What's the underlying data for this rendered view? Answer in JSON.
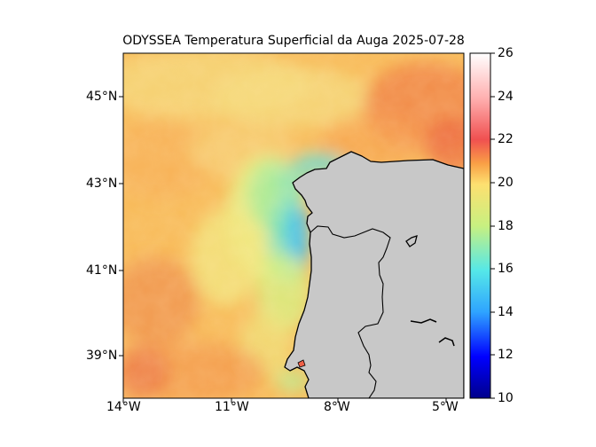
{
  "title": "ODYSSEA Temperatura Superficial da Auga 2025-07-28",
  "map": {
    "lon_range": [
      -14,
      -4.3
    ],
    "lat_range": [
      38,
      46
    ],
    "lon_ticks": [
      {
        "value": -14,
        "label": "14°W"
      },
      {
        "value": -11,
        "label": "11°W"
      },
      {
        "value": -8,
        "label": "8°W"
      },
      {
        "value": -5,
        "label": "5°W"
      }
    ],
    "lat_ticks": [
      {
        "value": 45,
        "label": "45°N"
      },
      {
        "value": 43,
        "label": "43°N"
      },
      {
        "value": 41,
        "label": "41°N"
      },
      {
        "value": 39,
        "label": "39°N"
      }
    ],
    "land_color": "#c8c8c8",
    "coastline_color": "#000000",
    "layer": "sea surface temperature"
  },
  "colorbar": {
    "min": 10,
    "max": 26,
    "ticks": [
      "10",
      "12",
      "14",
      "16",
      "18",
      "20",
      "22",
      "24",
      "26"
    ],
    "colormap": "jet-like",
    "colors": [
      "#00008b",
      "#0000ff",
      "#2fa4ff",
      "#55e8e8",
      "#c8f080",
      "#fde070",
      "#f9a046",
      "#f05050",
      "#ffb0b0",
      "#ffffff"
    ]
  }
}
